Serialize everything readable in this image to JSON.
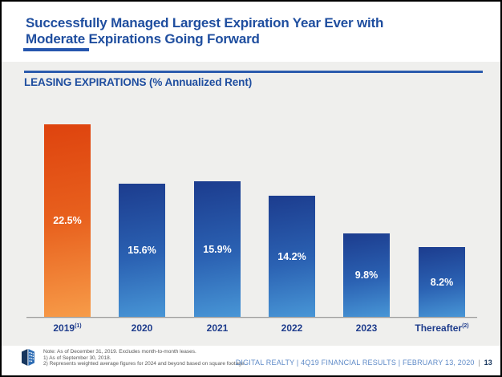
{
  "slide": {
    "title_line1": "Successfully Managed Largest Expiration Year Ever with",
    "title_line2": "Moderate Expirations Going Forward",
    "section_title": "LEASING EXPIRATIONS (% Annualized Rent)"
  },
  "chart_data": {
    "type": "bar",
    "title": "LEASING EXPIRATIONS (% Annualized Rent)",
    "xlabel": "",
    "ylabel": "",
    "ylim": [
      0,
      25
    ],
    "grid": false,
    "legend": "none",
    "categories": [
      "2019 (1)",
      "2020",
      "2021",
      "2022",
      "2023",
      "Thereafter (2)"
    ],
    "values": [
      22.5,
      15.6,
      15.9,
      14.2,
      9.8,
      8.2
    ],
    "bars": [
      {
        "label": "2019",
        "superscript": "(1)",
        "value": 22.5,
        "display_value": "22.5%",
        "highlight": true
      },
      {
        "label": "2020",
        "superscript": "",
        "value": 15.6,
        "display_value": "15.6%",
        "highlight": false
      },
      {
        "label": "2021",
        "superscript": "",
        "value": 15.9,
        "display_value": "15.9%",
        "highlight": false
      },
      {
        "label": "2022",
        "superscript": "",
        "value": 14.2,
        "display_value": "14.2%",
        "highlight": false
      },
      {
        "label": "2023",
        "superscript": "",
        "value": 9.8,
        "display_value": "9.8%",
        "highlight": false
      },
      {
        "label": "Thereafter",
        "superscript": "(2)",
        "value": 8.2,
        "display_value": "8.2%",
        "highlight": false
      }
    ]
  },
  "colors": {
    "title_blue": "#1F4E9F",
    "rule_blue": "#2B5BAD",
    "category_label_blue": "#1E3C8C",
    "bar_blue_top": "#1C3C8E",
    "bar_blue_bottom": "#4896D6",
    "bar_orange_top": "#DE430E",
    "bar_orange_bottom": "#F79C49",
    "band_gray": "#EFEFED"
  },
  "footnotes": [
    "Note: As of December 31, 2019. Excludes month-to-month leases.",
    "1)  As of September 30, 2018.",
    "2)  Represents weighted average figures for 2024 and beyond based on square footage."
  ],
  "footer": {
    "attribution": "DIGITAL REALTY | 4Q19 FINANCIAL RESULTS | FEBRUARY 13, 2020",
    "separator": "|",
    "page_number": "13",
    "logo": "digital-realty-cube-logo"
  }
}
